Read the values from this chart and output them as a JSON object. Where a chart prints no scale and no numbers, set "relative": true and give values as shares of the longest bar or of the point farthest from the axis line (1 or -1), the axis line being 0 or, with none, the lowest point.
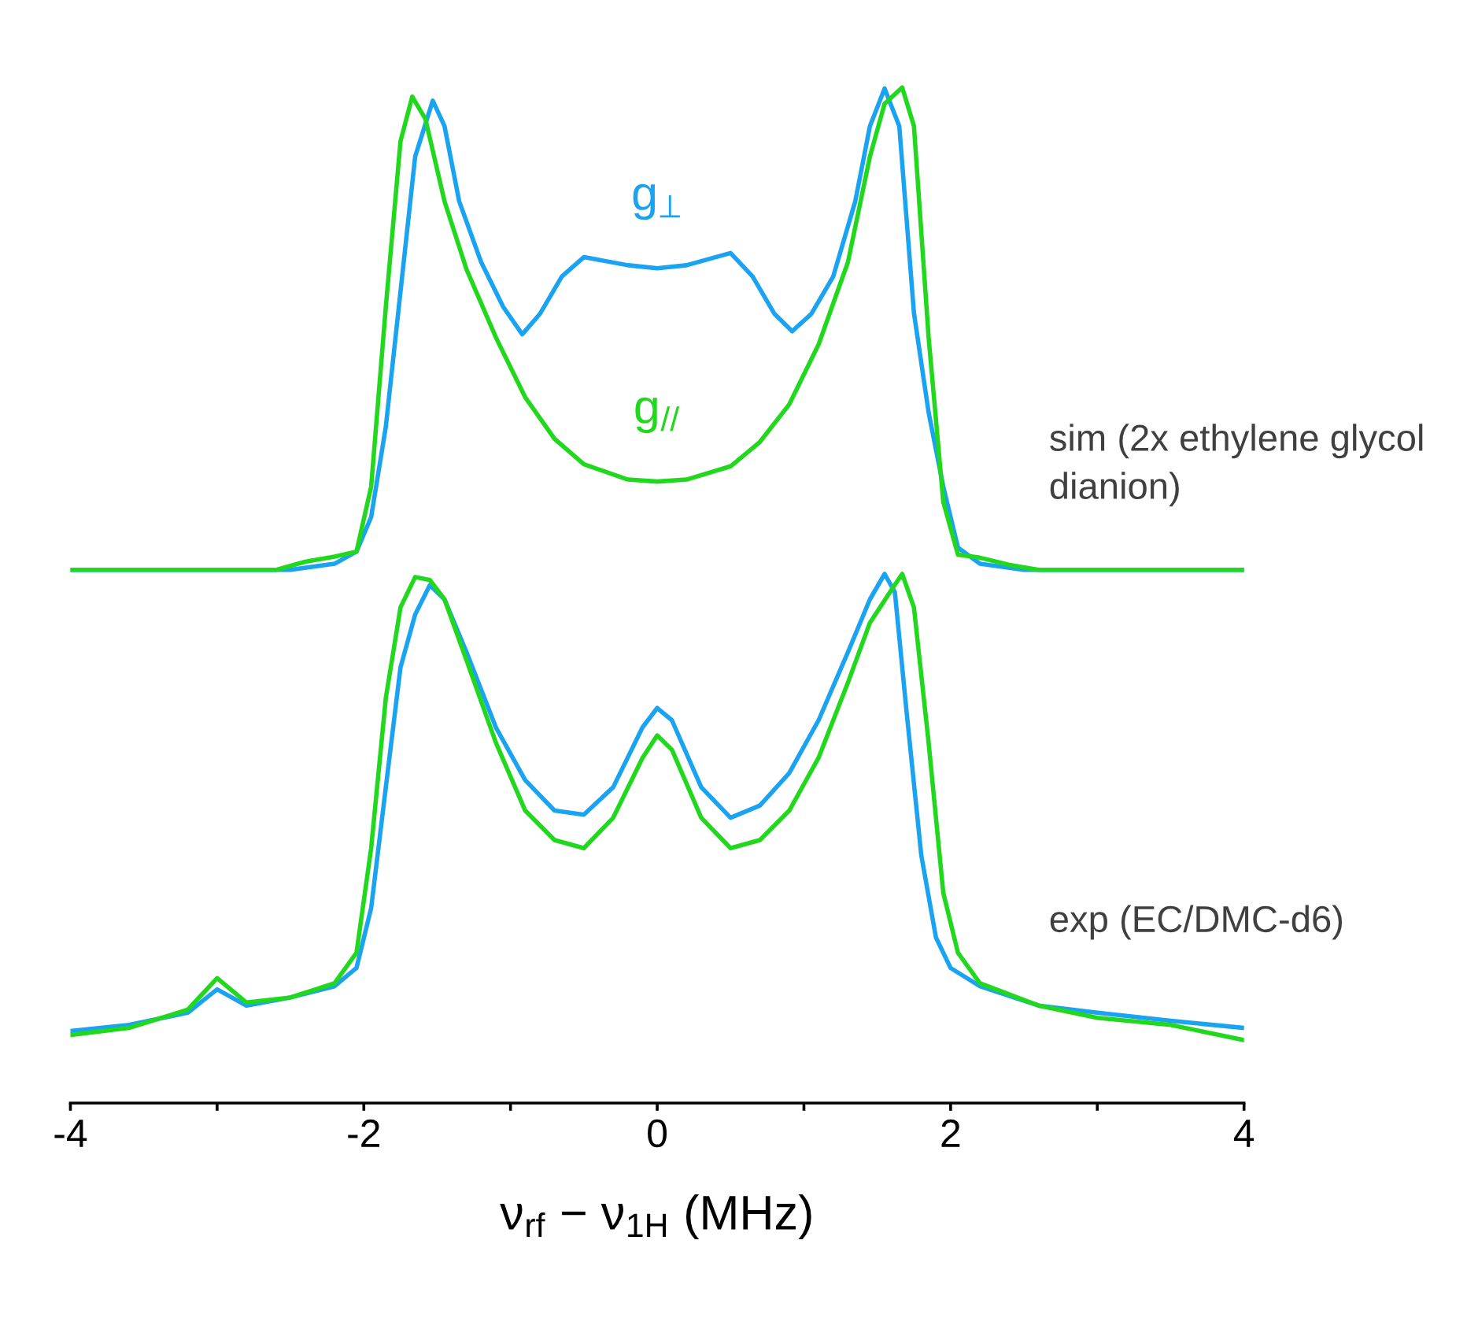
{
  "chart_data": {
    "type": "line",
    "relative": true,
    "xlabel": "ν$_{rf}$ − ν$_{1H}$ (MHz)",
    "xlim": [
      -4,
      4
    ],
    "xticks": [
      -4,
      {
        "value": -3,
        "label": null
      },
      -2,
      {
        "value": -1,
        "label": null
      },
      0,
      {
        "value": 1,
        "label": null
      },
      2,
      {
        "value": 3,
        "label": null
      },
      4
    ],
    "tick_labels": "x",
    "grid": false,
    "legend": false,
    "marker": "none",
    "line_style": "solid",
    "annotations": [
      "sim (2x ethylene glycol dianion)",
      "exp (EC/DMC-d6)"
    ],
    "series": [
      {
        "name": "g$_{⊥}$",
        "color": "#1aa3f0",
        "x": [
          -4,
          -2.5,
          -2.2,
          -2.05,
          -1.95,
          -1.85,
          -1.75,
          -1.65,
          -1.53,
          -1.45,
          -1.35,
          -1.2,
          -1.05,
          -0.92,
          -0.8,
          -0.65,
          -0.5,
          -0.2,
          0,
          0.2,
          0.5,
          0.65,
          0.8,
          0.92,
          1.05,
          1.2,
          1.35,
          1.45,
          1.55,
          1.65,
          1.75,
          1.85,
          1.95,
          2.05,
          2.2,
          2.5,
          4
        ],
        "values": [
          0.525,
          0.525,
          0.531,
          0.543,
          0.577,
          0.666,
          0.799,
          0.932,
          0.987,
          0.962,
          0.888,
          0.828,
          0.784,
          0.757,
          0.777,
          0.814,
          0.833,
          0.825,
          0.822,
          0.825,
          0.837,
          0.814,
          0.777,
          0.76,
          0.777,
          0.814,
          0.888,
          0.962,
          0.999,
          0.962,
          0.778,
          0.68,
          0.607,
          0.547,
          0.531,
          0.525,
          0.525
        ]
      },
      {
        "name": "g$_{//}$",
        "color": "#22d81e",
        "x": [
          -4,
          -2.6,
          -2.4,
          -2.2,
          -2.05,
          -1.95,
          -1.85,
          -1.75,
          -1.67,
          -1.58,
          -1.45,
          -1.3,
          -1.1,
          -0.9,
          -0.7,
          -0.5,
          -0.2,
          0,
          0.2,
          0.5,
          0.7,
          0.9,
          1.1,
          1.3,
          1.45,
          1.55,
          1.67,
          1.75,
          1.85,
          1.95,
          2.05,
          2.2,
          2.4,
          2.6,
          4
        ],
        "values": [
          0.525,
          0.525,
          0.533,
          0.538,
          0.543,
          0.607,
          0.784,
          0.947,
          0.991,
          0.969,
          0.888,
          0.821,
          0.754,
          0.695,
          0.654,
          0.629,
          0.614,
          0.612,
          0.614,
          0.627,
          0.651,
          0.688,
          0.747,
          0.828,
          0.932,
          0.984,
          1.0,
          0.962,
          0.754,
          0.592,
          0.54,
          0.537,
          0.53,
          0.525,
          0.525
        ]
      },
      {
        "color": "#1aa3f0",
        "x": [
          -4,
          -3.6,
          -3.2,
          -3.0,
          -2.8,
          -2.5,
          -2.2,
          -2.05,
          -1.95,
          -1.85,
          -1.75,
          -1.65,
          -1.55,
          -1.45,
          -1.3,
          -1.1,
          -0.9,
          -0.7,
          -0.5,
          -0.3,
          -0.1,
          0,
          0.1,
          0.3,
          0.5,
          0.7,
          0.9,
          1.1,
          1.3,
          1.45,
          1.55,
          1.62,
          1.7,
          1.8,
          1.9,
          2.0,
          2.2,
          2.6,
          3.0,
          3.5,
          4
        ],
        "values": [
          0.071,
          0.077,
          0.089,
          0.112,
          0.096,
          0.104,
          0.115,
          0.133,
          0.192,
          0.311,
          0.429,
          0.481,
          0.51,
          0.496,
          0.444,
          0.37,
          0.318,
          0.288,
          0.284,
          0.311,
          0.37,
          0.389,
          0.377,
          0.311,
          0.281,
          0.293,
          0.325,
          0.377,
          0.444,
          0.496,
          0.521,
          0.503,
          0.385,
          0.244,
          0.163,
          0.133,
          0.115,
          0.096,
          0.089,
          0.081,
          0.074
        ]
      },
      {
        "color": "#22d81e",
        "x": [
          -4,
          -3.6,
          -3.2,
          -3.0,
          -2.8,
          -2.5,
          -2.2,
          -2.05,
          -1.95,
          -1.85,
          -1.75,
          -1.65,
          -1.55,
          -1.45,
          -1.3,
          -1.1,
          -0.9,
          -0.7,
          -0.5,
          -0.3,
          -0.1,
          0,
          0.1,
          0.3,
          0.5,
          0.7,
          0.9,
          1.1,
          1.3,
          1.45,
          1.6,
          1.67,
          1.75,
          1.85,
          1.95,
          2.05,
          2.2,
          2.6,
          3.0,
          3.5,
          4
        ],
        "values": [
          0.067,
          0.074,
          0.092,
          0.123,
          0.099,
          0.104,
          0.118,
          0.148,
          0.251,
          0.399,
          0.488,
          0.518,
          0.515,
          0.496,
          0.436,
          0.355,
          0.288,
          0.259,
          0.251,
          0.281,
          0.34,
          0.362,
          0.348,
          0.281,
          0.251,
          0.259,
          0.288,
          0.34,
          0.414,
          0.473,
          0.506,
          0.521,
          0.488,
          0.355,
          0.207,
          0.148,
          0.118,
          0.096,
          0.084,
          0.077,
          0.062
        ]
      }
    ]
  }
}
